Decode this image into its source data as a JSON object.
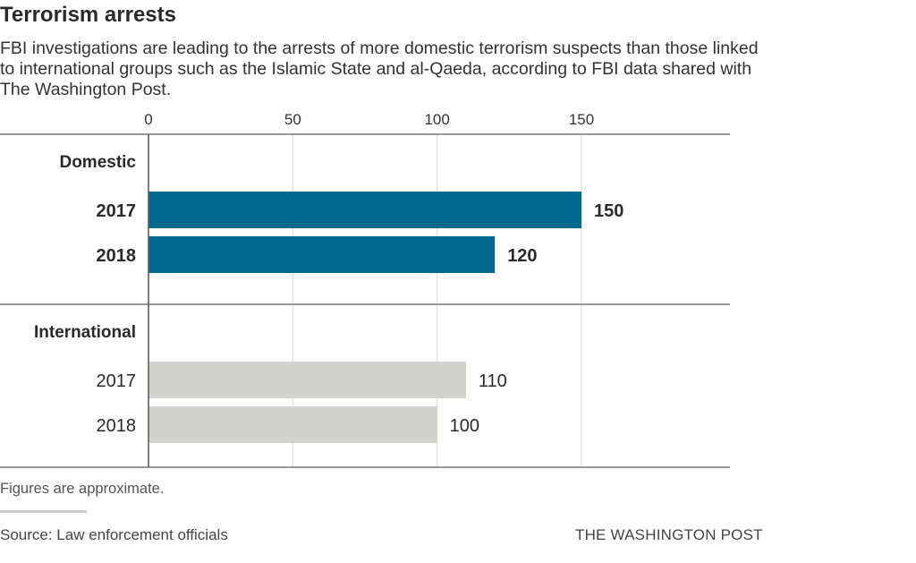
{
  "header": {
    "title": "Terrorism arrests",
    "subtitle": "FBI investigations are leading to the arrests of more domestic terrorism suspects than those linked to international groups such as the Islamic State and al-Qaeda, according to FBI data shared with The Washington Post."
  },
  "footer": {
    "note": "Figures are approximate.",
    "source": "Source: Law enforcement officials",
    "credit": "THE WASHINGTON POST"
  },
  "chart_data": {
    "type": "bar",
    "orientation": "horizontal",
    "title": "Terrorism arrests",
    "xlim": [
      0,
      200
    ],
    "ticks": [
      0,
      50,
      100,
      150
    ],
    "tick_labels": [
      "0",
      "50",
      "100",
      "150"
    ],
    "grid": true,
    "groups": [
      {
        "name": "Domestic",
        "color": "#006a8e",
        "label_weight": "bold",
        "bars": [
          {
            "category": "2017",
            "value": 150,
            "label": "150"
          },
          {
            "category": "2018",
            "value": 120,
            "label": "120"
          }
        ]
      },
      {
        "name": "International",
        "color": "#d2d2d0",
        "label_weight": "normal",
        "bars": [
          {
            "category": "2017",
            "value": 110,
            "label": "110"
          },
          {
            "category": "2018",
            "value": 100,
            "label": "100"
          }
        ]
      }
    ]
  }
}
